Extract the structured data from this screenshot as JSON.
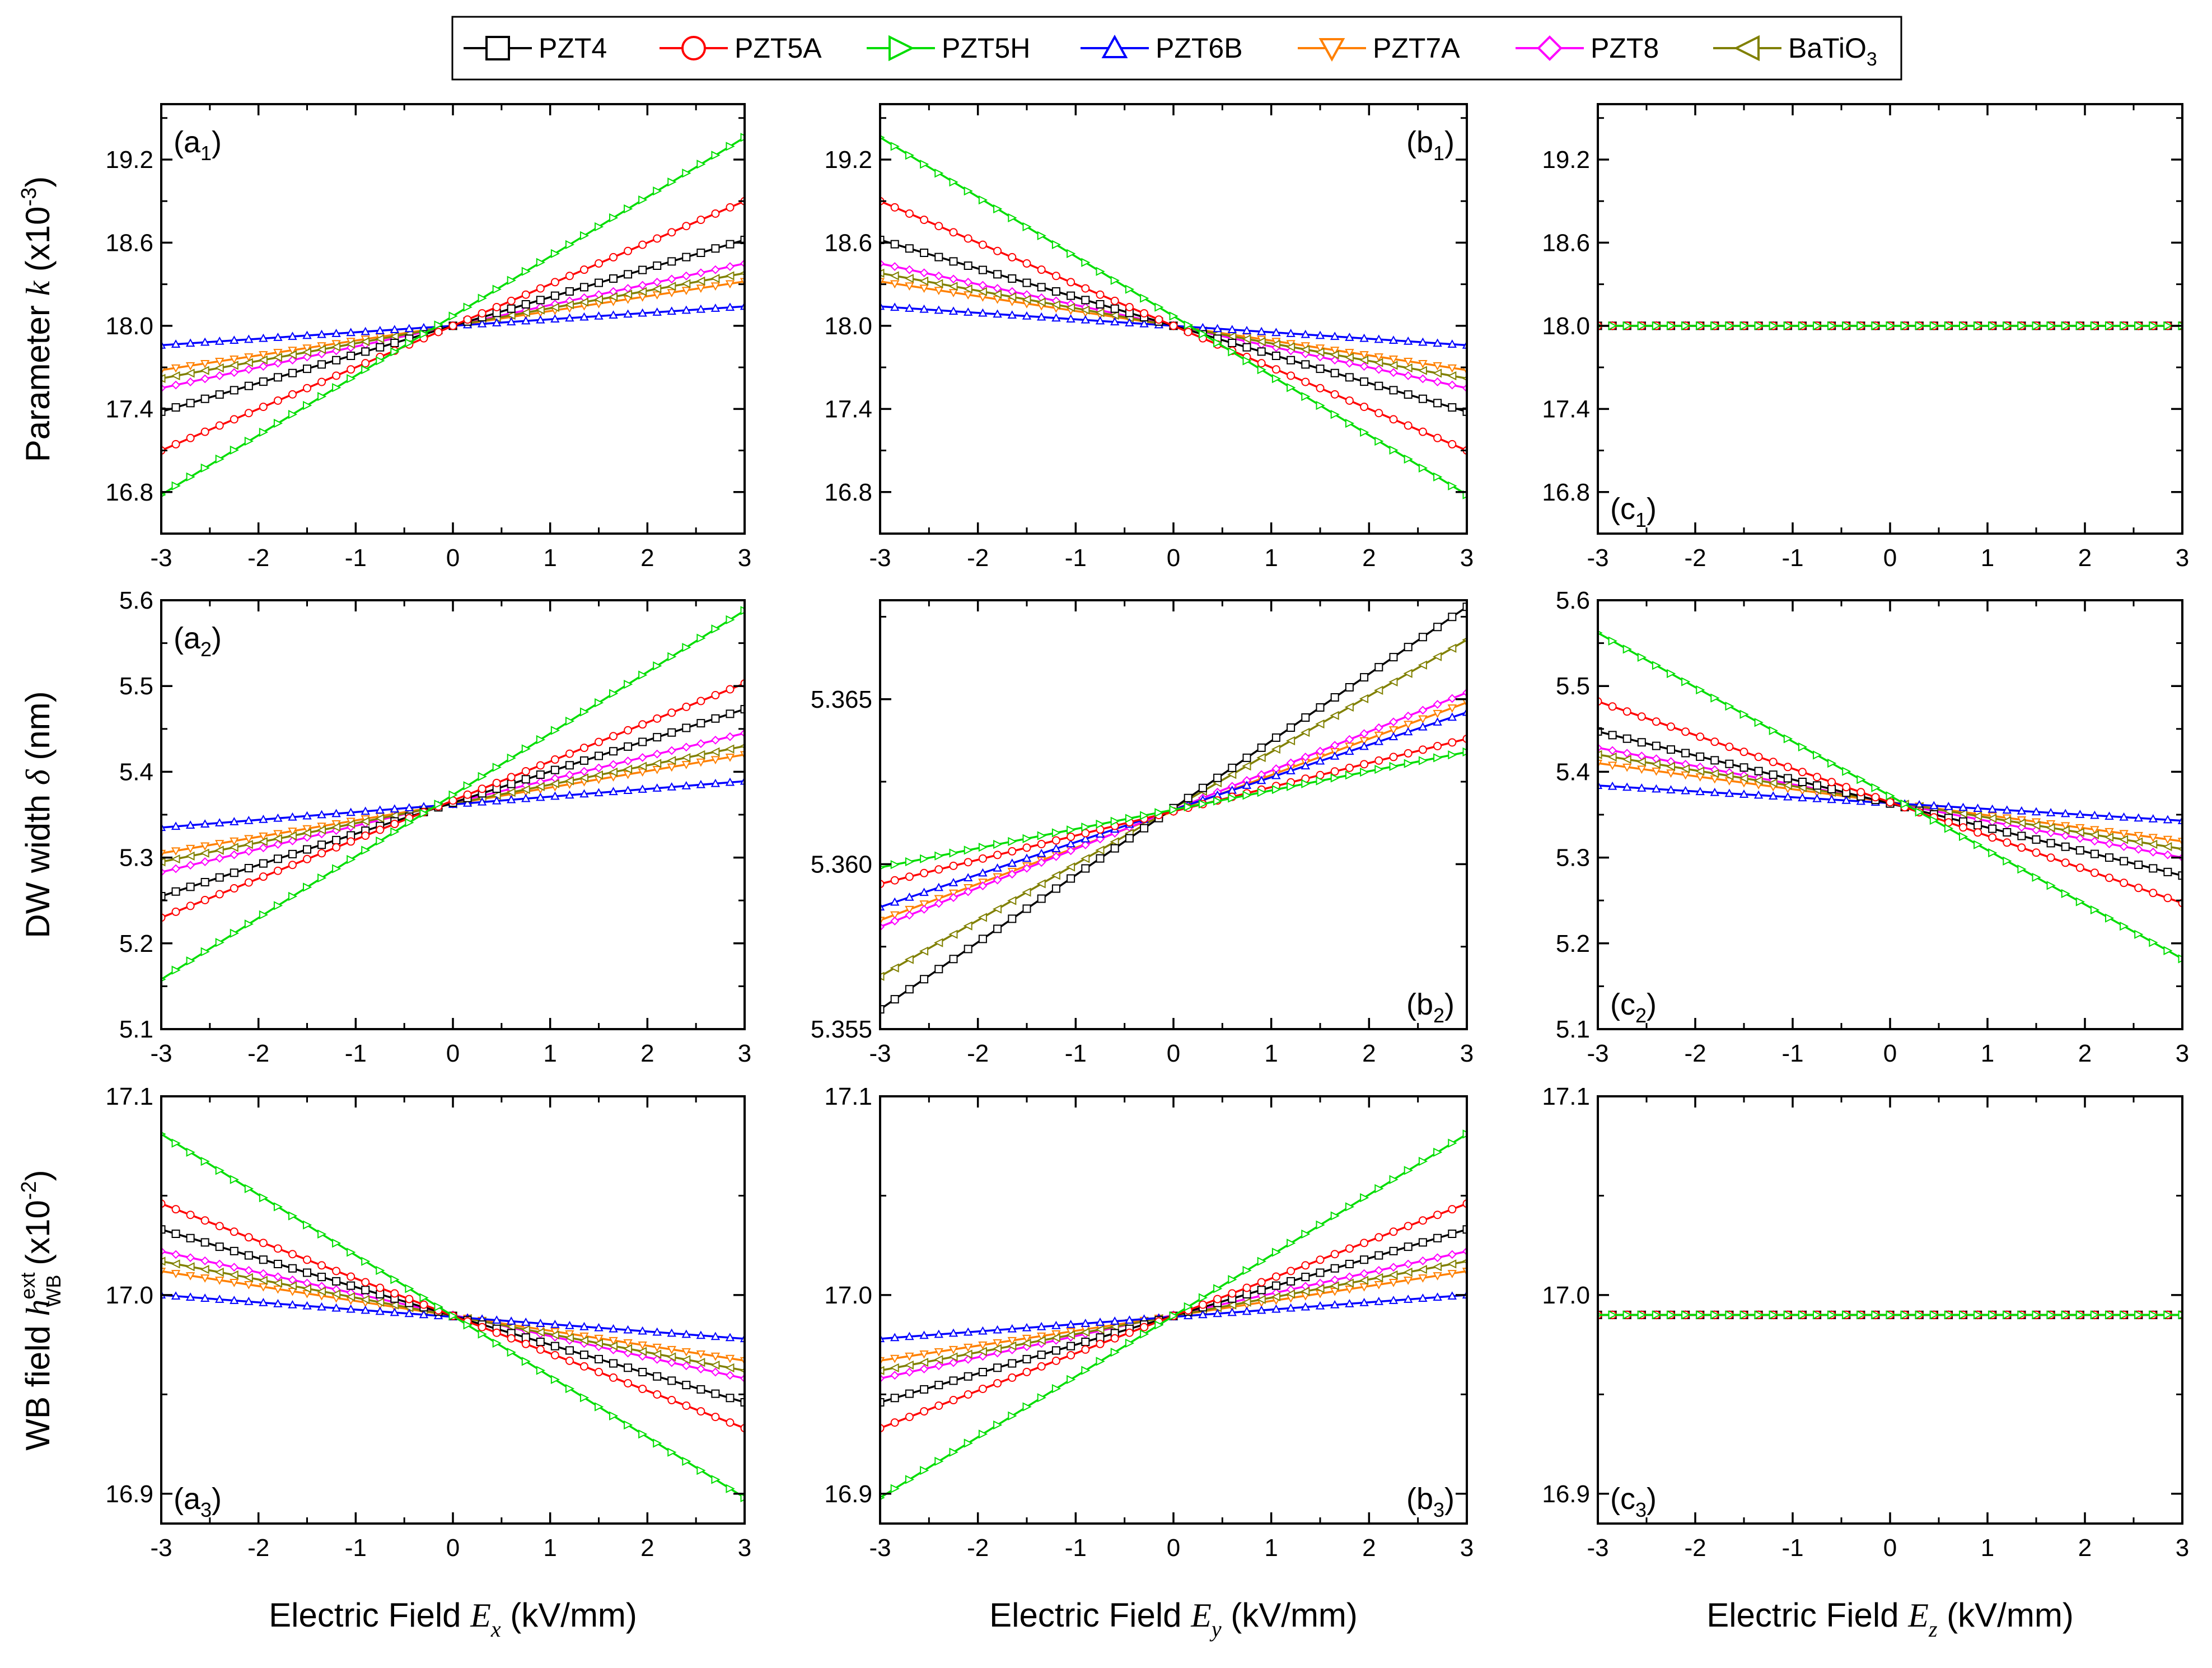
{
  "legend": {
    "entries": [
      {
        "label": "PZT4",
        "color": "#000000",
        "marker": "square"
      },
      {
        "label": "PZT5A",
        "color": "#ff0000",
        "marker": "circle"
      },
      {
        "label": "PZT5H",
        "color": "#00dd00",
        "marker": "triangle-right"
      },
      {
        "label": "PZT6B",
        "color": "#0000ff",
        "marker": "triangle-up"
      },
      {
        "label": "PZT7A",
        "color": "#ff8000",
        "marker": "triangle-down"
      },
      {
        "label": "PZT8",
        "color": "#ff00ff",
        "marker": "diamond"
      },
      {
        "label": "BaTiO",
        "sub": "3",
        "color": "#808000",
        "marker": "triangle-left"
      }
    ]
  },
  "row_titles": [
    {
      "pre": "Parameter ",
      "var": "k",
      "post": " (x10",
      "sup": "-3",
      "end": ")"
    },
    {
      "pre": "DW width ",
      "var": "δ",
      "post": " (nm)",
      "sup": "",
      "end": ""
    },
    {
      "pre": "WB field ",
      "var": "h",
      "varsup": "ext",
      "varsub": "WB",
      "post": " (x10",
      "sup": "-2",
      "end": ")"
    }
  ],
  "col_titles": [
    {
      "pre": "Electric Field ",
      "var": "E",
      "sub": "x",
      "post": " (kV/mm)"
    },
    {
      "pre": "Electric Field ",
      "var": "E",
      "sub": "y",
      "post": " (kV/mm)"
    },
    {
      "pre": "Electric Field  ",
      "var": "E",
      "sub": "z",
      "post": " (kV/mm)"
    }
  ],
  "chart_data": [
    {
      "panel": "a1",
      "label": "(a",
      "label_sub": "1",
      "label_end": ")",
      "label_pos": "top-left",
      "type": "line",
      "x": [
        -3,
        3
      ],
      "xlim": [
        -3,
        3
      ],
      "xticks": [
        -3,
        -2,
        -1,
        0,
        1,
        2,
        3
      ],
      "ylim": [
        16.5,
        19.6
      ],
      "yticks": [
        "16.8",
        "17.4",
        "18.0",
        "18.6",
        "19.2"
      ],
      "series": [
        {
          "name": "PZT4",
          "values": [
            17.38,
            18.62
          ]
        },
        {
          "name": "PZT5A",
          "values": [
            17.1,
            18.9
          ]
        },
        {
          "name": "PZT5H",
          "values": [
            16.78,
            19.36
          ]
        },
        {
          "name": "PZT6B",
          "values": [
            17.86,
            18.14
          ]
        },
        {
          "name": "PZT7A",
          "values": [
            17.68,
            18.32
          ]
        },
        {
          "name": "PZT8",
          "values": [
            17.55,
            18.45
          ]
        },
        {
          "name": "BaTiO3",
          "values": [
            17.62,
            18.38
          ]
        }
      ]
    },
    {
      "panel": "b1",
      "label": "(b",
      "label_sub": "1",
      "label_end": ")",
      "label_pos": "top-right",
      "type": "line",
      "x": [
        -3,
        3
      ],
      "xlim": [
        -3,
        3
      ],
      "xticks": [
        -3,
        -2,
        -1,
        0,
        1,
        2,
        3
      ],
      "ylim": [
        16.5,
        19.6
      ],
      "yticks": [
        "16.8",
        "17.4",
        "18.0",
        "18.6",
        "19.2"
      ],
      "series": [
        {
          "name": "PZT4",
          "values": [
            18.62,
            17.38
          ]
        },
        {
          "name": "PZT5A",
          "values": [
            18.9,
            17.1
          ]
        },
        {
          "name": "PZT5H",
          "values": [
            19.36,
            16.78
          ]
        },
        {
          "name": "PZT6B",
          "values": [
            18.14,
            17.86
          ]
        },
        {
          "name": "PZT7A",
          "values": [
            18.32,
            17.68
          ]
        },
        {
          "name": "PZT8",
          "values": [
            18.45,
            17.55
          ]
        },
        {
          "name": "BaTiO3",
          "values": [
            18.38,
            17.62
          ]
        }
      ]
    },
    {
      "panel": "c1",
      "label": "(c",
      "label_sub": "1",
      "label_end": ")",
      "label_pos": "bottom-left",
      "type": "line",
      "x": [
        -3,
        3
      ],
      "xlim": [
        -3,
        3
      ],
      "xticks": [
        -3,
        -2,
        -1,
        0,
        1,
        2,
        3
      ],
      "ylim": [
        16.5,
        19.6
      ],
      "yticks": [
        "16.8",
        "17.4",
        "18.0",
        "18.6",
        "19.2"
      ],
      "series": [
        {
          "name": "PZT4",
          "values": [
            18.0,
            18.0
          ]
        },
        {
          "name": "PZT5A",
          "values": [
            18.0,
            18.0
          ]
        },
        {
          "name": "PZT5H",
          "values": [
            18.0,
            18.0
          ]
        },
        {
          "name": "PZT6B",
          "values": [
            18.0,
            18.0
          ]
        },
        {
          "name": "PZT7A",
          "values": [
            18.0,
            18.0
          ]
        },
        {
          "name": "PZT8",
          "values": [
            18.0,
            18.0
          ]
        },
        {
          "name": "BaTiO3",
          "values": [
            18.0,
            18.0
          ]
        }
      ]
    },
    {
      "panel": "a2",
      "label": "(a",
      "label_sub": "2",
      "label_end": ")",
      "label_pos": "top-left",
      "type": "line",
      "x": [
        -3,
        3
      ],
      "xlim": [
        -3,
        3
      ],
      "xticks": [
        -3,
        -2,
        -1,
        0,
        1,
        2,
        3
      ],
      "ylim": [
        5.1,
        5.6
      ],
      "yticks": [
        "5.1",
        "5.2",
        "5.3",
        "5.4",
        "5.5",
        "5.6"
      ],
      "series": [
        {
          "name": "PZT4",
          "values": [
            5.255,
            5.473
          ]
        },
        {
          "name": "PZT5A",
          "values": [
            5.23,
            5.503
          ]
        },
        {
          "name": "PZT5H",
          "values": [
            5.158,
            5.588
          ]
        },
        {
          "name": "PZT6B",
          "values": [
            5.335,
            5.389
          ]
        },
        {
          "name": "PZT7A",
          "values": [
            5.305,
            5.42
          ]
        },
        {
          "name": "PZT8",
          "values": [
            5.283,
            5.445
          ]
        },
        {
          "name": "BaTiO3",
          "values": [
            5.295,
            5.43
          ]
        }
      ]
    },
    {
      "panel": "b2",
      "label": "(b",
      "label_sub": "2",
      "label_end": ")",
      "label_pos": "bottom-right",
      "type": "line",
      "x": [
        -3,
        3
      ],
      "xlim": [
        -3,
        3
      ],
      "xticks": [
        -3,
        -2,
        -1,
        0,
        1,
        2,
        3
      ],
      "ylim": [
        5.355,
        5.368
      ],
      "yticks": [
        "5.355",
        "5.360",
        "5.365"
      ],
      "series": [
        {
          "name": "PZT4",
          "values": [
            5.3556,
            5.3678
          ]
        },
        {
          "name": "PZT5A",
          "values": [
            5.3594,
            5.3638
          ]
        },
        {
          "name": "PZT5H",
          "values": [
            5.3599,
            5.3634
          ]
        },
        {
          "name": "PZT6B",
          "values": [
            5.3587,
            5.3646
          ]
        },
        {
          "name": "PZT7A",
          "values": [
            5.3583,
            5.3649
          ]
        },
        {
          "name": "PZT8",
          "values": [
            5.3581,
            5.3652
          ]
        },
        {
          "name": "BaTiO3",
          "values": [
            5.3566,
            5.3668
          ]
        }
      ]
    },
    {
      "panel": "c2",
      "label": "(c",
      "label_sub": "2",
      "label_end": ")",
      "label_pos": "bottom-left",
      "type": "line",
      "x": [
        -3,
        3
      ],
      "xlim": [
        -3,
        3
      ],
      "xticks": [
        -3,
        -2,
        -1,
        0,
        1,
        2,
        3
      ],
      "ylim": [
        5.1,
        5.6
      ],
      "yticks": [
        "5.1",
        "5.2",
        "5.3",
        "5.4",
        "5.5",
        "5.6"
      ],
      "series": [
        {
          "name": "PZT4",
          "values": [
            5.447,
            5.279
          ]
        },
        {
          "name": "PZT5A",
          "values": [
            5.482,
            5.247
          ]
        },
        {
          "name": "PZT5H",
          "values": [
            5.562,
            5.182
          ]
        },
        {
          "name": "PZT6B",
          "values": [
            5.384,
            5.343
          ]
        },
        {
          "name": "PZT7A",
          "values": [
            5.41,
            5.319
          ]
        },
        {
          "name": "PZT8",
          "values": [
            5.428,
            5.3
          ]
        },
        {
          "name": "BaTiO3",
          "values": [
            5.42,
            5.31
          ]
        }
      ]
    },
    {
      "panel": "a3",
      "label": "(a",
      "label_sub": "3",
      "label_end": ")",
      "label_pos": "bottom-left",
      "type": "line",
      "x": [
        -3,
        3
      ],
      "xlim": [
        -3,
        3
      ],
      "xticks": [
        -3,
        -2,
        -1,
        0,
        1,
        2,
        3
      ],
      "ylim": [
        16.885,
        17.1
      ],
      "yticks": [
        "16.9",
        "17.0",
        "17.1"
      ],
      "series": [
        {
          "name": "PZT4",
          "values": [
            17.033,
            16.946
          ]
        },
        {
          "name": "PZT5A",
          "values": [
            17.046,
            16.933
          ]
        },
        {
          "name": "PZT5H",
          "values": [
            17.081,
            16.898
          ]
        },
        {
          "name": "PZT6B",
          "values": [
            17.0,
            16.978
          ]
        },
        {
          "name": "PZT7A",
          "values": [
            17.012,
            16.967
          ]
        },
        {
          "name": "PZT8",
          "values": [
            17.022,
            16.958
          ]
        },
        {
          "name": "BaTiO3",
          "values": [
            17.017,
            16.962
          ]
        }
      ]
    },
    {
      "panel": "b3",
      "label": "(b",
      "label_sub": "3",
      "label_end": ")",
      "label_pos": "bottom-right",
      "type": "line",
      "x": [
        -3,
        3
      ],
      "xlim": [
        -3,
        3
      ],
      "xticks": [
        -3,
        -2,
        -1,
        0,
        1,
        2,
        3
      ],
      "ylim": [
        16.885,
        17.1
      ],
      "yticks": [
        "16.9",
        "17.0",
        "17.1"
      ],
      "series": [
        {
          "name": "PZT4",
          "values": [
            16.946,
            17.033
          ]
        },
        {
          "name": "PZT5A",
          "values": [
            16.933,
            17.046
          ]
        },
        {
          "name": "PZT5H",
          "values": [
            16.898,
            17.081
          ]
        },
        {
          "name": "PZT6B",
          "values": [
            16.978,
            17.0
          ]
        },
        {
          "name": "PZT7A",
          "values": [
            16.967,
            17.012
          ]
        },
        {
          "name": "PZT8",
          "values": [
            16.958,
            17.022
          ]
        },
        {
          "name": "BaTiO3",
          "values": [
            16.962,
            17.017
          ]
        }
      ]
    },
    {
      "panel": "c3",
      "label": "(c",
      "label_sub": "3",
      "label_end": ")",
      "label_pos": "bottom-left",
      "type": "line",
      "x": [
        -3,
        3
      ],
      "xlim": [
        -3,
        3
      ],
      "xticks": [
        -3,
        -2,
        -1,
        0,
        1,
        2,
        3
      ],
      "ylim": [
        16.885,
        17.1
      ],
      "yticks": [
        "16.9",
        "17.0",
        "17.1"
      ],
      "series": [
        {
          "name": "PZT4",
          "values": [
            16.99,
            16.99
          ]
        },
        {
          "name": "PZT5A",
          "values": [
            16.99,
            16.99
          ]
        },
        {
          "name": "PZT5H",
          "values": [
            16.99,
            16.99
          ]
        },
        {
          "name": "PZT6B",
          "values": [
            16.99,
            16.99
          ]
        },
        {
          "name": "PZT7A",
          "values": [
            16.99,
            16.99
          ]
        },
        {
          "name": "PZT8",
          "values": [
            16.99,
            16.99
          ]
        },
        {
          "name": "BaTiO3",
          "values": [
            16.99,
            16.99
          ]
        }
      ]
    }
  ]
}
